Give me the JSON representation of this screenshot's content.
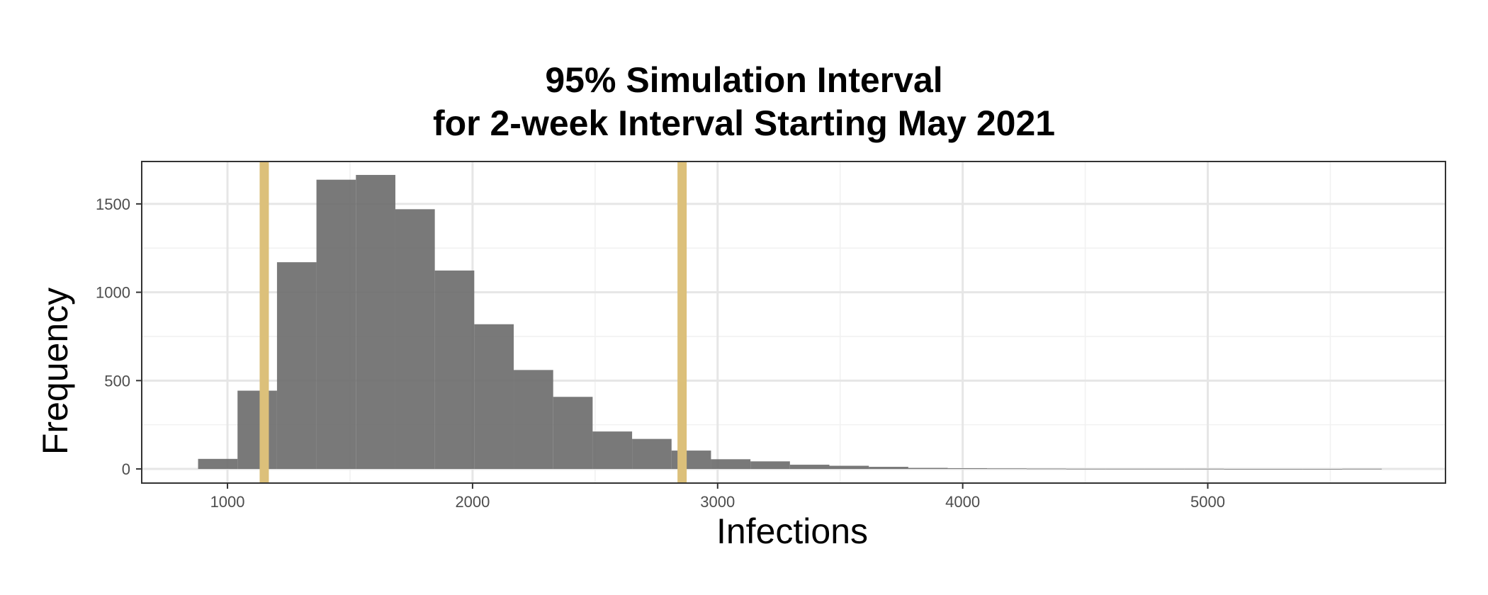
{
  "chart_data": {
    "type": "bar",
    "title_lines": [
      "95% Simulation Interval",
      "for 2-week Interval Starting May 2021"
    ],
    "xlabel": "Infections",
    "ylabel": "Frequency",
    "xlim": [
      650,
      5970
    ],
    "ylim": [
      -80,
      1740
    ],
    "x_ticks": [
      1000,
      2000,
      3000,
      4000,
      5000
    ],
    "y_ticks": [
      0,
      500,
      1000,
      1500
    ],
    "bin_width": 161,
    "bins": [
      {
        "x0": 880,
        "x1": 1041,
        "count": 57
      },
      {
        "x0": 1041,
        "x1": 1202,
        "count": 443
      },
      {
        "x0": 1202,
        "x1": 1363,
        "count": 1170
      },
      {
        "x0": 1363,
        "x1": 1524,
        "count": 1637
      },
      {
        "x0": 1524,
        "x1": 1685,
        "count": 1664
      },
      {
        "x0": 1685,
        "x1": 1846,
        "count": 1470
      },
      {
        "x0": 1846,
        "x1": 2007,
        "count": 1123
      },
      {
        "x0": 2007,
        "x1": 2168,
        "count": 819
      },
      {
        "x0": 2168,
        "x1": 2329,
        "count": 560
      },
      {
        "x0": 2329,
        "x1": 2490,
        "count": 408
      },
      {
        "x0": 2490,
        "x1": 2651,
        "count": 212
      },
      {
        "x0": 2651,
        "x1": 2812,
        "count": 170
      },
      {
        "x0": 2812,
        "x1": 2973,
        "count": 104
      },
      {
        "x0": 2973,
        "x1": 3134,
        "count": 55
      },
      {
        "x0": 3134,
        "x1": 3295,
        "count": 43
      },
      {
        "x0": 3295,
        "x1": 3456,
        "count": 24
      },
      {
        "x0": 3456,
        "x1": 3617,
        "count": 18
      },
      {
        "x0": 3617,
        "x1": 3778,
        "count": 12
      },
      {
        "x0": 3778,
        "x1": 3939,
        "count": 6
      },
      {
        "x0": 3939,
        "x1": 4100,
        "count": 4
      },
      {
        "x0": 4100,
        "x1": 4261,
        "count": 3
      },
      {
        "x0": 4261,
        "x1": 4422,
        "count": 2
      },
      {
        "x0": 4422,
        "x1": 4583,
        "count": 1
      },
      {
        "x0": 4583,
        "x1": 4744,
        "count": 1
      },
      {
        "x0": 4744,
        "x1": 4905,
        "count": 1
      },
      {
        "x0": 4905,
        "x1": 5066,
        "count": 1
      },
      {
        "x0": 5066,
        "x1": 5227,
        "count": 0
      },
      {
        "x0": 5227,
        "x1": 5388,
        "count": 0
      },
      {
        "x0": 5388,
        "x1": 5549,
        "count": 0
      },
      {
        "x0": 5549,
        "x1": 5710,
        "count": 1
      }
    ],
    "interval_lines": [
      1150,
      2855
    ],
    "bar_color": "#6e6e6e",
    "interval_color": "#dcc07a",
    "grid": true
  }
}
